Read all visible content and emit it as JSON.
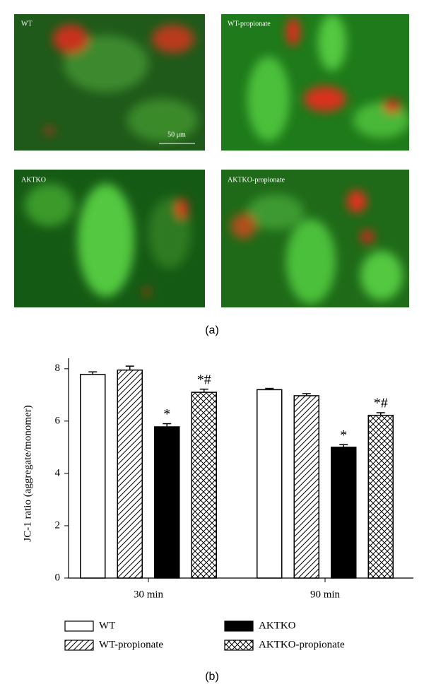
{
  "figure": {
    "panels": [
      "WT",
      "WT-propionate",
      "AKTKO",
      "AKTKO-propionate"
    ],
    "scale_bar": "50 μm",
    "label_a": "(a)",
    "label_b": "(b)"
  },
  "chart_data": {
    "type": "bar",
    "y_label": "JC-1 ratio (aggregate/monomer)",
    "categories": [
      "30 min",
      "90 min"
    ],
    "series": [
      {
        "name": "WT",
        "pattern": "none",
        "color": "#000000",
        "values": [
          7.78,
          7.2
        ],
        "errors": [
          0.1,
          0.05
        ],
        "annotations": [
          null,
          null
        ]
      },
      {
        "name": "WT-propionate",
        "pattern": "diagonal",
        "color": "#000000",
        "values": [
          7.95,
          6.97
        ],
        "errors": [
          0.15,
          0.08
        ],
        "annotations": [
          null,
          null
        ]
      },
      {
        "name": "AKTKO",
        "pattern": "solid",
        "color": "#000000",
        "values": [
          5.78,
          5.0
        ],
        "errors": [
          0.12,
          0.1
        ],
        "annotations": [
          "*",
          "*"
        ]
      },
      {
        "name": "AKTKO-propionate",
        "pattern": "crosshatch",
        "color": "#000000",
        "values": [
          7.1,
          6.22
        ],
        "errors": [
          0.12,
          0.1
        ],
        "annotations": [
          "*#",
          "*#"
        ]
      }
    ],
    "ylim": [
      0,
      8.4
    ],
    "yticks": [
      0,
      2,
      4,
      6,
      8
    ],
    "grid": false
  }
}
